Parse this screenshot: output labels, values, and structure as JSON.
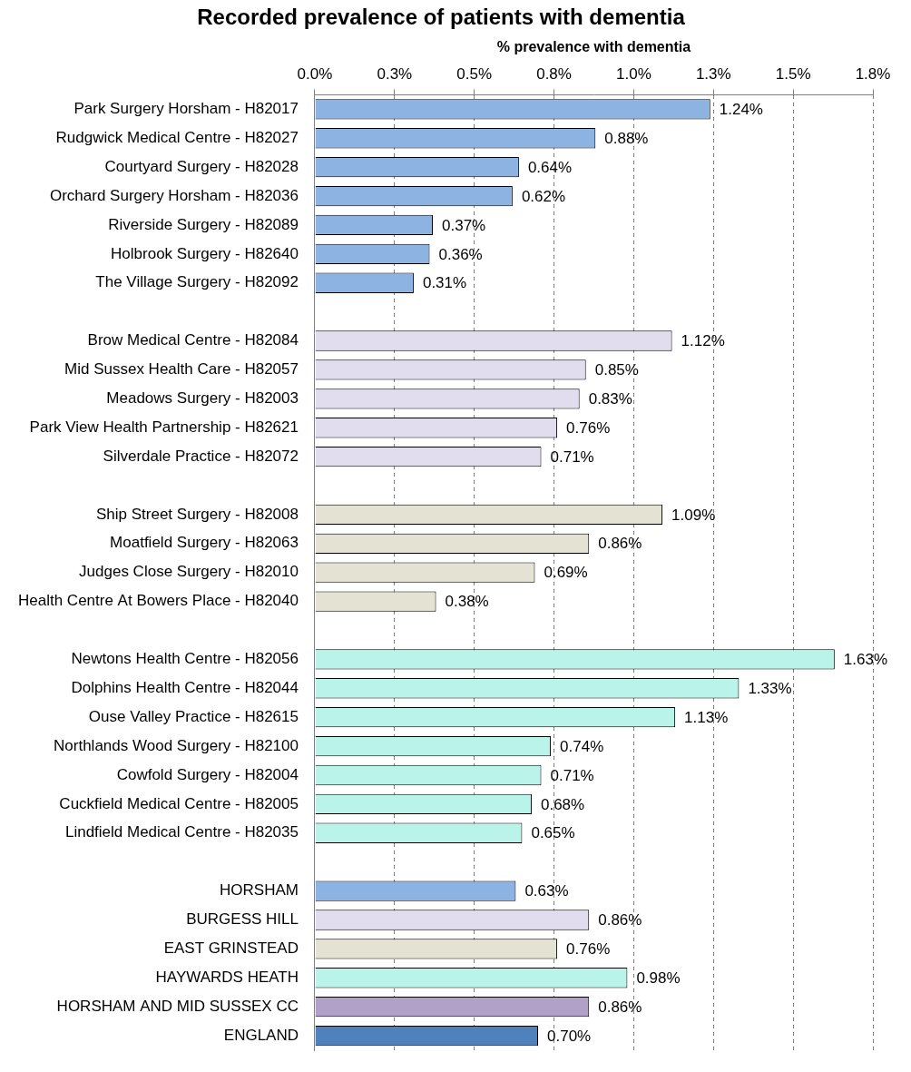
{
  "chart_data": {
    "type": "bar",
    "orientation": "horizontal",
    "title": "Recorded prevalence of patients with dementia",
    "x_label": "% prevalence with dementia",
    "categories": [
      "Park Surgery Horsham - H82017",
      "Rudgwick Medical Centre - H82027",
      "Courtyard Surgery - H82028",
      "Orchard Surgery Horsham - H82036",
      "Riverside Surgery - H82089",
      "Holbrook Surgery - H82640",
      "The Village Surgery - H82092",
      null,
      "Brow Medical Centre - H82084",
      "Mid Sussex Health Care - H82057",
      "Meadows Surgery - H82003",
      "Park View Health Partnership - H82621",
      "Silverdale Practice - H82072",
      null,
      "Ship Street Surgery - H82008",
      "Moatfield Surgery - H82063",
      "Judges Close Surgery - H82010",
      "Health Centre At Bowers Place - H82040",
      null,
      "Newtons Health Centre - H82056",
      "Dolphins Health Centre - H82044",
      "Ouse Valley Practice - H82615",
      "Northlands Wood Surgery - H82100",
      "Cowfold Surgery - H82004",
      "Cuckfield Medical Centre - H82005",
      "Lindfield Medical Centre - H82035",
      null,
      "HORSHAM",
      "BURGESS HILL",
      "EAST GRINSTEAD",
      "HAYWARDS HEATH",
      "HORSHAM AND MID SUSSEX CC",
      "ENGLAND"
    ],
    "values": [
      1.24,
      0.88,
      0.64,
      0.62,
      0.37,
      0.36,
      0.31,
      null,
      1.12,
      0.85,
      0.83,
      0.76,
      0.71,
      null,
      1.09,
      0.86,
      0.69,
      0.38,
      null,
      1.63,
      1.33,
      1.13,
      0.74,
      0.71,
      0.68,
      0.65,
      null,
      0.63,
      0.86,
      0.76,
      0.98,
      0.86,
      0.7
    ],
    "value_labels": [
      "1.24%",
      "0.88%",
      "0.64%",
      "0.62%",
      "0.37%",
      "0.36%",
      "0.31%",
      null,
      "1.12%",
      "0.85%",
      "0.83%",
      "0.76%",
      "0.71%",
      null,
      "1.09%",
      "0.86%",
      "0.69%",
      "0.38%",
      null,
      "1.63%",
      "1.33%",
      "1.13%",
      "0.74%",
      "0.71%",
      "0.68%",
      "0.65%",
      null,
      "0.63%",
      "0.86%",
      "0.76%",
      "0.98%",
      "0.86%",
      "0.70%"
    ],
    "colors": [
      "#8db3e2",
      "#8db3e2",
      "#8db3e2",
      "#8db3e2",
      "#8db3e2",
      "#8db3e2",
      "#8db3e2",
      null,
      "#e1ddee",
      "#e1ddee",
      "#e1ddee",
      "#e1ddee",
      "#e1ddee",
      null,
      "#e4e2d3",
      "#e4e2d3",
      "#e4e2d3",
      "#e4e2d3",
      null,
      "#baf3ea",
      "#baf3ea",
      "#baf3ea",
      "#baf3ea",
      "#baf3ea",
      "#baf3ea",
      "#baf3ea",
      null,
      "#8db3e2",
      "#e1ddee",
      "#e4e2d3",
      "#baf3ea",
      "#b1a0c7",
      "#4f81bd"
    ],
    "xlim": [
      0,
      1.75
    ],
    "xticks": [
      {
        "value": 0,
        "label": "0.0%"
      },
      {
        "value": 0.25,
        "label": "0.3%"
      },
      {
        "value": 0.5,
        "label": "0.5%"
      },
      {
        "value": 0.75,
        "label": "0.8%"
      },
      {
        "value": 1.0,
        "label": "1.0%"
      },
      {
        "value": 1.25,
        "label": "1.3%"
      },
      {
        "value": 1.5,
        "label": "1.5%"
      },
      {
        "value": 1.75,
        "label": "1.8%"
      }
    ],
    "grid": true,
    "data_labels": true
  }
}
